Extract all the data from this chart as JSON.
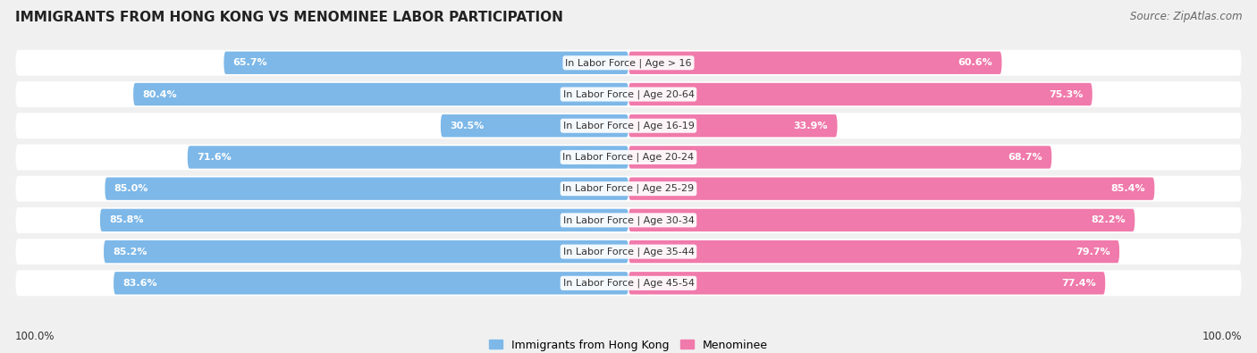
{
  "title": "IMMIGRANTS FROM HONG KONG VS MENOMINEE LABOR PARTICIPATION",
  "source": "Source: ZipAtlas.com",
  "categories": [
    "In Labor Force | Age > 16",
    "In Labor Force | Age 20-64",
    "In Labor Force | Age 16-19",
    "In Labor Force | Age 20-24",
    "In Labor Force | Age 25-29",
    "In Labor Force | Age 30-34",
    "In Labor Force | Age 35-44",
    "In Labor Force | Age 45-54"
  ],
  "hk_values": [
    65.7,
    80.4,
    30.5,
    71.6,
    85.0,
    85.8,
    85.2,
    83.6
  ],
  "men_values": [
    60.6,
    75.3,
    33.9,
    68.7,
    85.4,
    82.2,
    79.7,
    77.4
  ],
  "hk_color": "#7db8e8",
  "men_color": "#f07aab",
  "hk_color_light": "#c5ddf5",
  "men_color_light": "#f5b8d0",
  "background_color": "#f0f0f0",
  "row_bg_color": "#ffffff",
  "legend_hk": "Immigrants from Hong Kong",
  "legend_men": "Menominee",
  "x_left_label": "100.0%",
  "x_right_label": "100.0%",
  "max_val": 100.0
}
